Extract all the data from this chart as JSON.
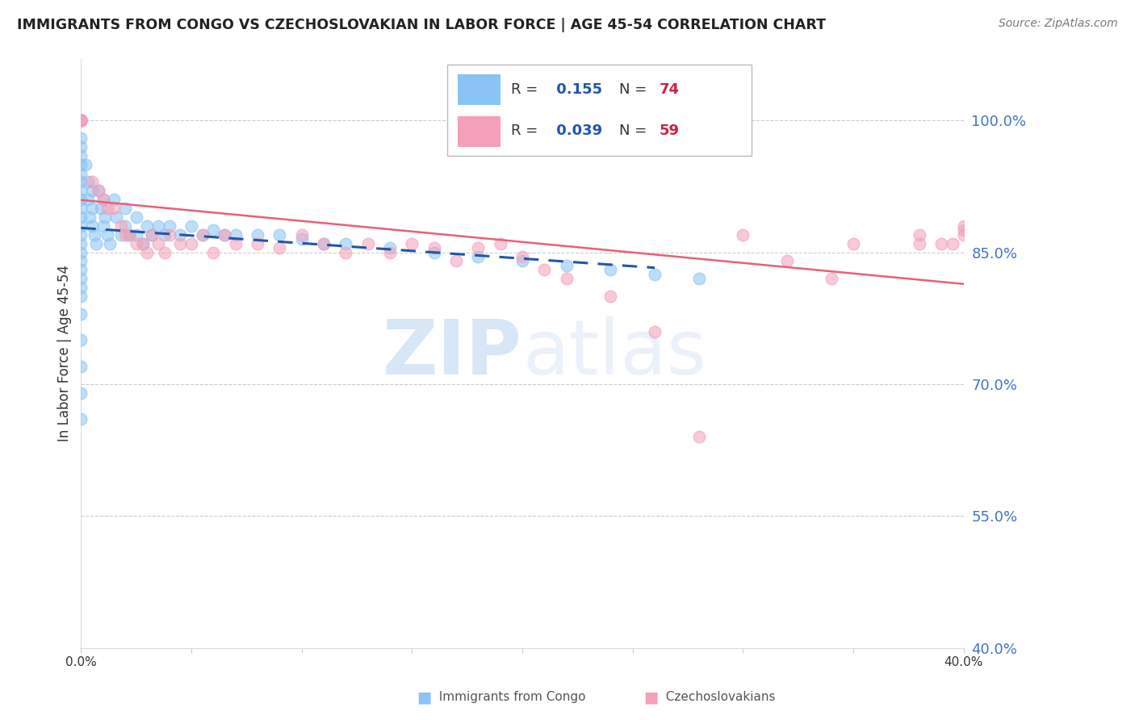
{
  "title": "IMMIGRANTS FROM CONGO VS CZECHOSLOVAKIAN IN LABOR FORCE | AGE 45-54 CORRELATION CHART",
  "source": "Source: ZipAtlas.com",
  "ylabel": "In Labor Force | Age 45-54",
  "xlim": [
    0.0,
    0.4
  ],
  "ylim": [
    0.4,
    1.07
  ],
  "yticks": [
    0.4,
    0.55,
    0.7,
    0.85,
    1.0
  ],
  "ytick_labels": [
    "40.0%",
    "55.0%",
    "70.0%",
    "85.0%",
    "100.0%"
  ],
  "congo_color": "#89c4f4",
  "czech_color": "#f4a0b8",
  "trend_congo_color": "#2255aa",
  "trend_czech_color": "#e8607a",
  "R_congo": 0.155,
  "N_congo": 74,
  "R_czech": 0.039,
  "N_czech": 59,
  "watermark_zip": "ZIP",
  "watermark_atlas": "atlas",
  "legend_R_color": "#2255aa",
  "legend_N_color": "#cc2244",
  "congo_x": [
    0.0,
    0.0,
    0.0,
    0.0,
    0.0,
    0.0,
    0.0,
    0.0,
    0.0,
    0.0,
    0.0,
    0.0,
    0.0,
    0.0,
    0.0,
    0.0,
    0.0,
    0.0,
    0.0,
    0.0,
    0.0,
    0.0,
    0.0,
    0.0,
    0.0,
    0.002,
    0.003,
    0.003,
    0.004,
    0.005,
    0.005,
    0.005,
    0.006,
    0.007,
    0.008,
    0.009,
    0.01,
    0.01,
    0.011,
    0.012,
    0.013,
    0.015,
    0.016,
    0.018,
    0.02,
    0.02,
    0.022,
    0.025,
    0.025,
    0.028,
    0.03,
    0.032,
    0.035,
    0.038,
    0.04,
    0.045,
    0.05,
    0.055,
    0.06,
    0.065,
    0.07,
    0.08,
    0.09,
    0.1,
    0.11,
    0.12,
    0.14,
    0.16,
    0.18,
    0.2,
    0.22,
    0.24,
    0.26,
    0.28
  ],
  "congo_y": [
    1.0,
    0.98,
    0.97,
    0.96,
    0.95,
    0.94,
    0.93,
    0.92,
    0.91,
    0.9,
    0.89,
    0.88,
    0.87,
    0.86,
    0.85,
    0.84,
    0.83,
    0.82,
    0.81,
    0.8,
    0.78,
    0.75,
    0.72,
    0.69,
    0.66,
    0.95,
    0.93,
    0.91,
    0.89,
    0.92,
    0.9,
    0.88,
    0.87,
    0.86,
    0.92,
    0.9,
    0.88,
    0.91,
    0.89,
    0.87,
    0.86,
    0.91,
    0.89,
    0.87,
    0.9,
    0.88,
    0.87,
    0.89,
    0.87,
    0.86,
    0.88,
    0.87,
    0.88,
    0.87,
    0.88,
    0.87,
    0.88,
    0.87,
    0.875,
    0.87,
    0.87,
    0.87,
    0.87,
    0.865,
    0.86,
    0.86,
    0.855,
    0.85,
    0.845,
    0.84,
    0.835,
    0.83,
    0.825,
    0.82
  ],
  "czech_x": [
    0.0,
    0.0,
    0.0,
    0.0,
    0.0,
    0.0,
    0.0,
    0.0,
    0.0,
    0.005,
    0.008,
    0.01,
    0.012,
    0.015,
    0.018,
    0.02,
    0.022,
    0.025,
    0.028,
    0.03,
    0.032,
    0.035,
    0.038,
    0.04,
    0.045,
    0.05,
    0.055,
    0.06,
    0.065,
    0.07,
    0.08,
    0.09,
    0.1,
    0.11,
    0.12,
    0.13,
    0.14,
    0.15,
    0.16,
    0.17,
    0.18,
    0.19,
    0.2,
    0.21,
    0.22,
    0.24,
    0.26,
    0.28,
    0.3,
    0.32,
    0.34,
    0.35,
    0.38,
    0.38,
    0.39,
    0.395,
    0.4,
    0.4,
    0.4
  ],
  "czech_y": [
    1.0,
    1.0,
    1.0,
    1.0,
    1.0,
    1.0,
    1.0,
    1.0,
    1.0,
    0.93,
    0.92,
    0.91,
    0.9,
    0.9,
    0.88,
    0.87,
    0.87,
    0.86,
    0.86,
    0.85,
    0.87,
    0.86,
    0.85,
    0.87,
    0.86,
    0.86,
    0.87,
    0.85,
    0.87,
    0.86,
    0.86,
    0.855,
    0.87,
    0.86,
    0.85,
    0.86,
    0.85,
    0.86,
    0.855,
    0.84,
    0.855,
    0.86,
    0.845,
    0.83,
    0.82,
    0.8,
    0.76,
    0.64,
    0.87,
    0.84,
    0.82,
    0.86,
    0.87,
    0.86,
    0.86,
    0.86,
    0.87,
    0.875,
    0.88
  ]
}
